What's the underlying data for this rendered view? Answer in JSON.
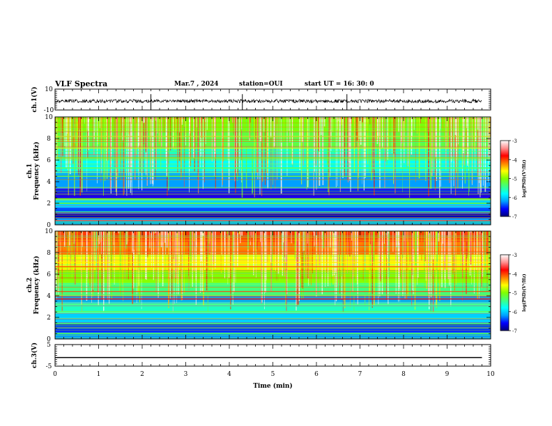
{
  "header": {
    "title": "VLF Spectra",
    "date": "Mar.7 , 2024",
    "station": "station=OUI",
    "start": "start UT =  16: 30: 0"
  },
  "colors": {
    "colormap": [
      "#00007a",
      "#0000ff",
      "#00a0ff",
      "#00ffff",
      "#40ff80",
      "#80ff00",
      "#ffff00",
      "#ff8000",
      "#ff0000",
      "#ff9090",
      "#ffffff"
    ],
    "trace": "#000000"
  },
  "chart_data": [
    {
      "type": "line",
      "ylabel": "ch.1(V)",
      "ylim": [
        -10,
        10
      ],
      "yticks": [
        10,
        -10
      ],
      "x": [
        0,
        2.2,
        4.3,
        6.7,
        9.8
      ],
      "series": [
        {
          "values": [
            -1.5,
            -1.5,
            -1.5,
            -1.5,
            -1.5
          ]
        }
      ]
    },
    {
      "type": "heatmap",
      "ylabel_1": "ch.1",
      "ylabel_2": "Frequency (kHz)",
      "ylim": [
        0,
        10
      ],
      "yticks": [
        0,
        2,
        4,
        6,
        8,
        10
      ],
      "xlim": [
        0,
        10
      ],
      "colorbar": {
        "label": "log(PSD)(V²/Hz)",
        "ticks": [
          -3,
          -4,
          -5,
          -6,
          -7
        ],
        "range": [
          -7,
          -3
        ]
      },
      "bands_khz": [
        {
          "lo": 0.0,
          "hi": 0.6,
          "v": -6.2
        },
        {
          "lo": 0.6,
          "hi": 1.0,
          "v": -6.8
        },
        {
          "lo": 1.0,
          "hi": 1.6,
          "v": -6.4
        },
        {
          "lo": 1.6,
          "hi": 2.4,
          "v": -6.0
        },
        {
          "lo": 2.4,
          "hi": 3.4,
          "v": -6.6
        },
        {
          "lo": 3.4,
          "hi": 4.8,
          "v": -6.2
        },
        {
          "lo": 4.8,
          "hi": 6.0,
          "v": -5.8
        },
        {
          "lo": 6.0,
          "hi": 7.2,
          "v": -5.6
        },
        {
          "lo": 7.2,
          "hi": 8.6,
          "v": -5.2
        },
        {
          "lo": 8.6,
          "hi": 10.0,
          "v": -5.0
        }
      ],
      "lines_khz": [
        {
          "f": 0.4,
          "v": -3.6
        },
        {
          "f": 1.2,
          "v": -5.4
        },
        {
          "f": 2.0,
          "v": -5.0
        },
        {
          "f": 2.4,
          "v": -5.0
        },
        {
          "f": 4.5,
          "v": -5.2
        },
        {
          "f": 5.3,
          "v": -5.4
        },
        {
          "f": 6.2,
          "v": -5.0
        },
        {
          "f": 7.1,
          "v": -4.7
        }
      ]
    },
    {
      "type": "heatmap",
      "ylabel_1": "ch.2",
      "ylabel_2": "Frequency (kHz)",
      "ylim": [
        0,
        10
      ],
      "yticks": [
        0,
        2,
        4,
        6,
        8,
        10
      ],
      "xlim": [
        0,
        10
      ],
      "colorbar": {
        "label": "log(PSD)(V²/Hz)",
        "ticks": [
          -3,
          -4,
          -5,
          -6,
          -7
        ],
        "range": [
          -7,
          -3
        ]
      },
      "bands_khz": [
        {
          "lo": 0.0,
          "hi": 0.6,
          "v": -6.2
        },
        {
          "lo": 0.6,
          "hi": 1.4,
          "v": -6.5
        },
        {
          "lo": 1.4,
          "hi": 2.4,
          "v": -6.0
        },
        {
          "lo": 2.4,
          "hi": 3.4,
          "v": -5.6
        },
        {
          "lo": 3.4,
          "hi": 4.0,
          "v": -6.2
        },
        {
          "lo": 4.0,
          "hi": 5.2,
          "v": -5.4
        },
        {
          "lo": 5.2,
          "hi": 6.4,
          "v": -5.0
        },
        {
          "lo": 6.4,
          "hi": 7.8,
          "v": -4.6
        },
        {
          "lo": 7.8,
          "hi": 9.0,
          "v": -4.2
        },
        {
          "lo": 9.0,
          "hi": 10.0,
          "v": -4.0
        }
      ],
      "lines_khz": [
        {
          "f": 0.5,
          "v": -5.2
        },
        {
          "f": 1.4,
          "v": -5.0
        },
        {
          "f": 3.1,
          "v": -5.6
        },
        {
          "f": 3.7,
          "v": -3.8
        },
        {
          "f": 4.4,
          "v": -4.0
        },
        {
          "f": 6.7,
          "v": -4.0
        },
        {
          "f": 7.1,
          "v": -4.6
        }
      ]
    },
    {
      "type": "line",
      "ylabel": "ch.3(V)",
      "ylim": [
        -5,
        5
      ],
      "yticks": [
        5,
        -5
      ],
      "xlabel": "Time (min)",
      "xlim": [
        0,
        10
      ],
      "xticks": [
        0,
        1,
        2,
        3,
        4,
        5,
        6,
        7,
        8,
        9,
        10
      ],
      "x": [
        0,
        9.8
      ],
      "series": [
        {
          "values": [
            -1,
            -1
          ]
        }
      ]
    }
  ]
}
